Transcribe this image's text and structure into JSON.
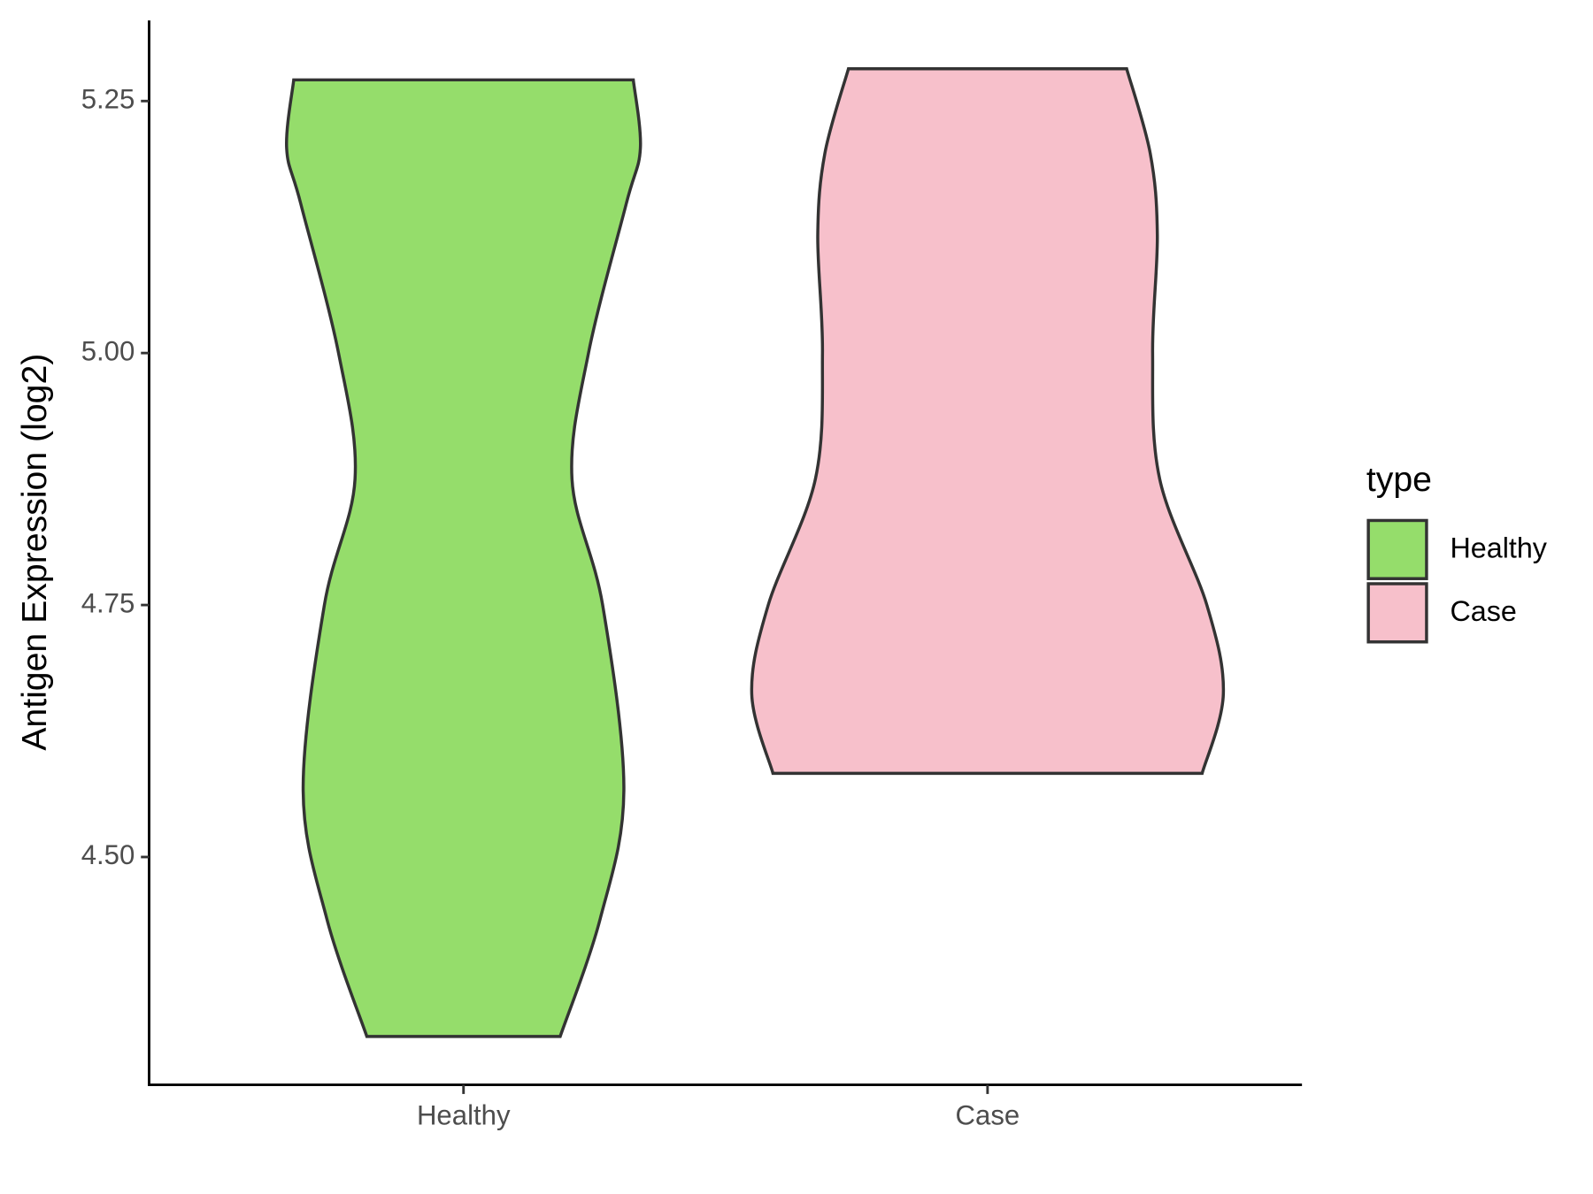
{
  "chart_data": {
    "type": "violin",
    "y_label": "Antigen Expression (log2)",
    "categories": [
      "Healthy",
      "Case"
    ],
    "ylim": [
      4.274,
      5.33
    ],
    "yticks": [
      {
        "value": 4.5,
        "label": "4.50"
      },
      {
        "value": 4.75,
        "label": "4.75"
      },
      {
        "value": 5.0,
        "label": "5.00"
      },
      {
        "value": 5.25,
        "label": "5.25"
      }
    ],
    "legend_title": "type",
    "series": [
      {
        "name": "Healthy",
        "color": "#95dd6b",
        "y": [
          5.271,
          5.203,
          5.148,
          5.0,
          4.875,
          4.75,
          4.566,
          4.439,
          4.322
        ],
        "density": [
          0.72,
          0.75,
          0.69,
          0.53,
          0.46,
          0.59,
          0.68,
          0.58,
          0.41
        ]
      },
      {
        "name": "Case",
        "color": "#f7c0cb",
        "y": [
          5.282,
          5.198,
          5.117,
          5.0,
          4.875,
          4.75,
          4.662,
          4.583
        ],
        "density": [
          0.59,
          0.69,
          0.72,
          0.7,
          0.73,
          0.93,
          1.0,
          0.91
        ]
      }
    ]
  }
}
